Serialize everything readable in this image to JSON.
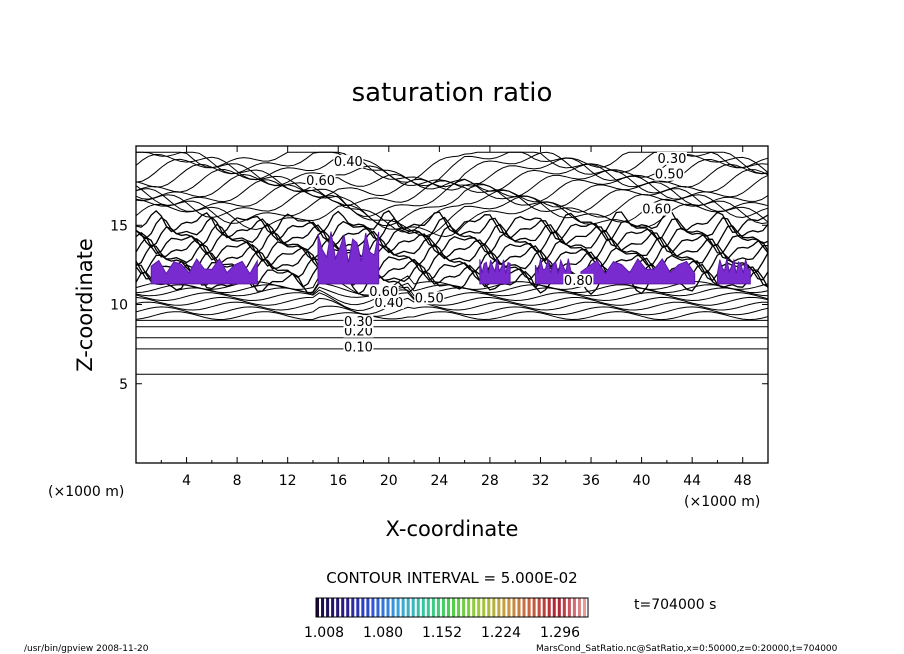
{
  "chart_data": {
    "type": "contour",
    "title": "saturation ratio",
    "xlabel": "X-coordinate",
    "ylabel": "Z-coordinate",
    "x_unit": "(×1000 m)",
    "x_unit_right": "(×1000 m)",
    "xlim": [
      0,
      50
    ],
    "ylim": [
      0,
      20
    ],
    "x_ticks": [
      "4",
      "8",
      "12",
      "16",
      "20",
      "24",
      "28",
      "32",
      "36",
      "40",
      "44",
      "48"
    ],
    "y_ticks": [
      "5",
      "10",
      "15"
    ],
    "contour_interval_text": "CONTOUR INTERVAL = 5.000E-02",
    "time_text": "t=704000 s",
    "colorbar": {
      "tick_labels": [
        "1.008",
        "1.080",
        "1.152",
        "1.224",
        "1.296"
      ],
      "colors": [
        "#1a0a3a",
        "#2a1a8a",
        "#2f4fd6",
        "#3aa0e0",
        "#37c8a0",
        "#4ad04a",
        "#9acc3a",
        "#c8a040",
        "#c86040",
        "#b02030",
        "#e89a9a"
      ]
    },
    "contour_labels": [
      {
        "text": "0.10",
        "x": 17.6,
        "z": 7.1
      },
      {
        "text": "0.20",
        "x": 17.6,
        "z": 8.1
      },
      {
        "text": "0.30",
        "x": 17.6,
        "z": 8.7
      },
      {
        "text": "0.40",
        "x": 20.0,
        "z": 9.9
      },
      {
        "text": "0.50",
        "x": 23.2,
        "z": 10.2
      },
      {
        "text": "0.60",
        "x": 19.6,
        "z": 10.6
      },
      {
        "text": "0.40",
        "x": 16.8,
        "z": 18.8
      },
      {
        "text": "0.60",
        "x": 14.6,
        "z": 17.6
      },
      {
        "text": "0.30",
        "x": 42.4,
        "z": 19.0
      },
      {
        "text": "0.50",
        "x": 42.2,
        "z": 18.0
      },
      {
        "text": "0.60",
        "x": 41.2,
        "z": 15.8
      },
      {
        "text": "0.80",
        "x": 35.0,
        "z": 11.3
      }
    ],
    "supersaturated_regions_x": [
      [
        1.2,
        9.6
      ],
      [
        14.4,
        19.2
      ],
      [
        27.2,
        29.6
      ],
      [
        31.6,
        34.4
      ],
      [
        35.2,
        44.2
      ],
      [
        46.0,
        48.6
      ]
    ],
    "grid": false
  },
  "footer": {
    "left": "/usr/bin/gpview   2008-11-20",
    "right": "MarsCond_SatRatio.nc@SatRatio,x=0:50000,z=0:20000,t=704000"
  }
}
